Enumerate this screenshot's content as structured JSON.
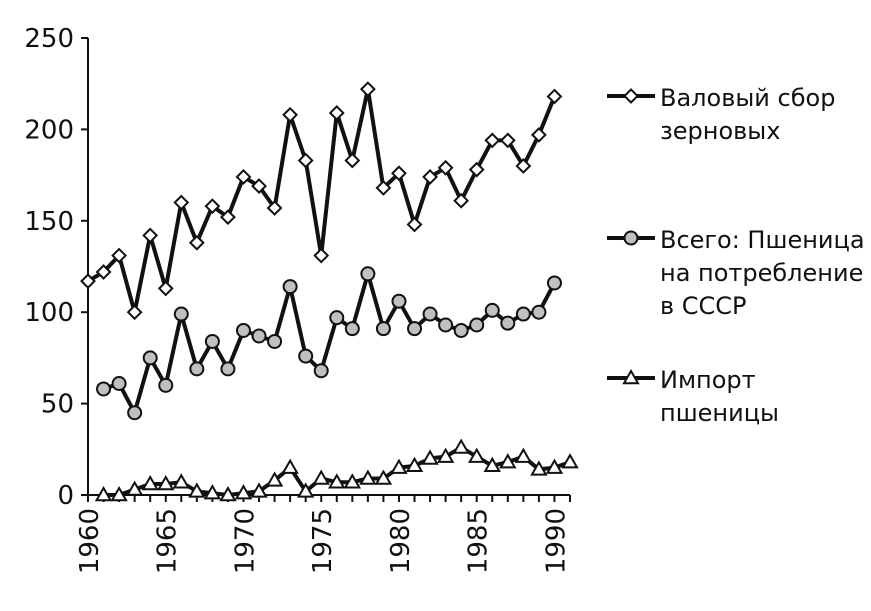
{
  "chart_data": {
    "type": "line",
    "title": "",
    "xlabel": "",
    "ylabel": "",
    "xlim": [
      1960,
      1991
    ],
    "ylim": [
      0,
      250
    ],
    "x_ticks": [
      "1960",
      "1965",
      "1970",
      "1975",
      "1980",
      "1985",
      "1990"
    ],
    "y_ticks": [
      "0",
      "50",
      "100",
      "150",
      "200",
      "250"
    ],
    "grid": false,
    "legend_position": "right",
    "series": [
      {
        "name": "Валовый сбор зерновых",
        "legend_lines": [
          "Валовый сбор",
          "зерновых"
        ],
        "marker": "diamond",
        "marker_fill": "#ffffff",
        "color": "#111111",
        "x": [
          1960,
          1961,
          1962,
          1963,
          1964,
          1965,
          1966,
          1967,
          1968,
          1969,
          1970,
          1971,
          1972,
          1973,
          1974,
          1975,
          1976,
          1977,
          1978,
          1979,
          1980,
          1981,
          1982,
          1983,
          1984,
          1985,
          1986,
          1987,
          1988,
          1989,
          1990
        ],
        "y": [
          117,
          122,
          131,
          100,
          142,
          113,
          160,
          138,
          158,
          152,
          174,
          169,
          157,
          208,
          183,
          131,
          209,
          183,
          222,
          168,
          176,
          148,
          174,
          179,
          161,
          178,
          194,
          194,
          180,
          197,
          218
        ]
      },
      {
        "name": "Всего: Пшеница на потребление в СССР",
        "legend_lines": [
          "Всего: Пшеница",
          "на потребление",
          "в СССР"
        ],
        "marker": "circle",
        "marker_fill": "#c0c0c0",
        "color": "#111111",
        "x": [
          1961,
          1962,
          1963,
          1964,
          1965,
          1966,
          1967,
          1968,
          1969,
          1970,
          1971,
          1972,
          1973,
          1974,
          1975,
          1976,
          1977,
          1978,
          1979,
          1980,
          1981,
          1982,
          1983,
          1984,
          1985,
          1986,
          1987,
          1988,
          1989,
          1990
        ],
        "y": [
          58,
          61,
          45,
          75,
          60,
          99,
          69,
          84,
          69,
          90,
          87,
          84,
          114,
          76,
          68,
          97,
          91,
          121,
          91,
          106,
          91,
          99,
          93,
          90,
          93,
          101,
          94,
          99,
          100,
          116
        ]
      },
      {
        "name": "Импорт пшеницы",
        "legend_lines": [
          "Импорт",
          "пшеницы"
        ],
        "marker": "triangle",
        "marker_fill": "#ffffff",
        "color": "#111111",
        "x": [
          1961,
          1962,
          1963,
          1964,
          1965,
          1966,
          1967,
          1968,
          1969,
          1970,
          1971,
          1972,
          1973,
          1974,
          1975,
          1976,
          1977,
          1978,
          1979,
          1980,
          1981,
          1982,
          1983,
          1984,
          1985,
          1986,
          1987,
          1988,
          1989,
          1990,
          1991
        ],
        "y": [
          0,
          0,
          3,
          6,
          6,
          7,
          2,
          1,
          0,
          1,
          2,
          8,
          15,
          2,
          9,
          7,
          7,
          9,
          9,
          15,
          16,
          20,
          21,
          26,
          21,
          16,
          18,
          21,
          14,
          15,
          18
        ]
      }
    ]
  }
}
